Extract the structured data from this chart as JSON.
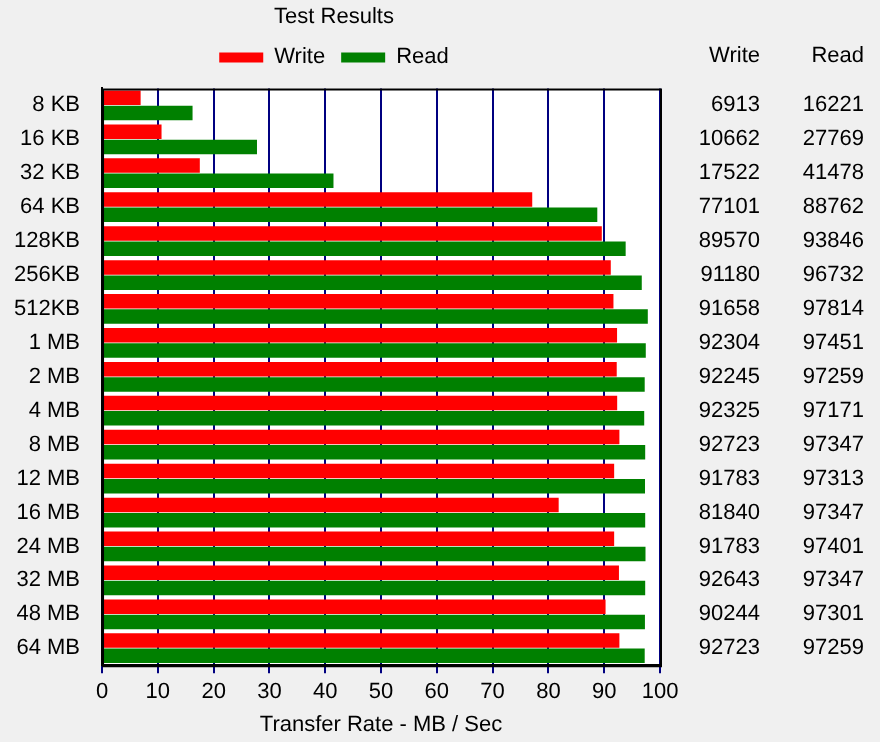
{
  "chart_data": {
    "type": "bar",
    "orientation": "horizontal",
    "title": "Test Results",
    "xlabel": "Transfer Rate - MB / Sec",
    "categories": [
      "8 KB",
      "16 KB",
      "32 KB",
      "64 KB",
      "128KB",
      "256KB",
      "512KB",
      "1 MB",
      "2 MB",
      "4 MB",
      "8 MB",
      "12 MB",
      "16 MB",
      "24 MB",
      "32 MB",
      "48 MB",
      "64 MB"
    ],
    "series": [
      {
        "name": "Write",
        "color": "#ff0000",
        "values": [
          6.913,
          10.662,
          17.522,
          77.101,
          89.57,
          91.18,
          91.658,
          92.304,
          92.245,
          92.325,
          92.723,
          91.783,
          81.84,
          91.783,
          92.643,
          90.244,
          92.723
        ]
      },
      {
        "name": "Read",
        "color": "#008000",
        "values": [
          16.221,
          27.769,
          41.478,
          88.762,
          93.846,
          96.732,
          97.814,
          97.451,
          97.259,
          97.171,
          97.347,
          97.313,
          97.347,
          97.401,
          97.347,
          97.301,
          97.259
        ]
      }
    ],
    "annotations": [
      "6913",
      "16221",
      "10662",
      "27769",
      "17522",
      "41478",
      "77101",
      "88762",
      "89570",
      "93846",
      "91180",
      "96732",
      "91658",
      "97814",
      "92304",
      "97451",
      "92245",
      "97259",
      "92325",
      "97171",
      "92723",
      "97347",
      "91783",
      "97313",
      "81840",
      "97347",
      "91783",
      "97401",
      "92643",
      "97347",
      "90244",
      "97301",
      "92723",
      "97259"
    ],
    "xlim": [
      0,
      100
    ],
    "xticks": [
      0,
      10,
      20,
      30,
      40,
      50,
      60,
      70,
      80,
      90,
      100
    ],
    "grid": "x",
    "legend": "top"
  }
}
